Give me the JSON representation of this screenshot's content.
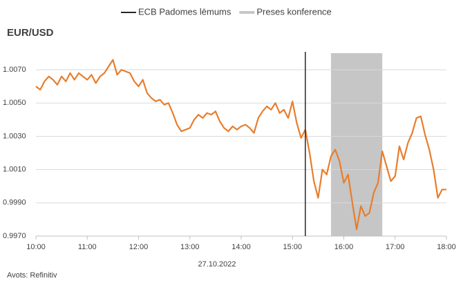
{
  "chart_data": {
    "type": "line",
    "title": "EUR/USD",
    "x_label": "27.10.2022",
    "source": "Avots: Refinitiv",
    "x": [
      "10:00",
      "10:05",
      "10:10",
      "10:15",
      "10:20",
      "10:25",
      "10:30",
      "10:35",
      "10:40",
      "10:45",
      "10:50",
      "10:55",
      "11:00",
      "11:05",
      "11:10",
      "11:15",
      "11:20",
      "11:25",
      "11:30",
      "11:35",
      "11:40",
      "11:45",
      "11:50",
      "11:55",
      "12:00",
      "12:05",
      "12:10",
      "12:15",
      "12:20",
      "12:25",
      "12:30",
      "12:35",
      "12:40",
      "12:45",
      "12:50",
      "12:55",
      "13:00",
      "13:05",
      "13:10",
      "13:15",
      "13:20",
      "13:25",
      "13:30",
      "13:35",
      "13:40",
      "13:45",
      "13:50",
      "13:55",
      "14:00",
      "14:05",
      "14:10",
      "14:15",
      "14:20",
      "14:25",
      "14:30",
      "14:35",
      "14:40",
      "14:45",
      "14:50",
      "14:55",
      "15:00",
      "15:05",
      "15:10",
      "15:15",
      "15:20",
      "15:25",
      "15:30",
      "15:35",
      "15:40",
      "15:45",
      "15:50",
      "15:55",
      "16:00",
      "16:05",
      "16:10",
      "16:15",
      "16:20",
      "16:25",
      "16:30",
      "16:35",
      "16:40",
      "16:45",
      "16:50",
      "16:55",
      "17:00",
      "17:05",
      "17:10",
      "17:15",
      "17:20",
      "17:25",
      "17:30",
      "17:35",
      "17:40",
      "17:45",
      "17:50",
      "17:55",
      "18:00"
    ],
    "series": [
      {
        "name": "EUR/USD",
        "color": "#e87d2b",
        "values": [
          1.006,
          1.0058,
          1.0063,
          1.0066,
          1.0064,
          1.0061,
          1.0066,
          1.0063,
          1.0068,
          1.0064,
          1.0068,
          1.0066,
          1.0064,
          1.0067,
          1.0062,
          1.0066,
          1.0068,
          1.0072,
          1.0076,
          1.0067,
          1.007,
          1.0069,
          1.0068,
          1.0063,
          1.006,
          1.0064,
          1.0056,
          1.0053,
          1.0051,
          1.0052,
          1.0049,
          1.005,
          1.0044,
          1.0037,
          1.0033,
          1.0034,
          1.0035,
          1.004,
          1.0043,
          1.0041,
          1.0044,
          1.0043,
          1.0045,
          1.0039,
          1.0035,
          1.0033,
          1.0036,
          1.0034,
          1.0036,
          1.0037,
          1.0035,
          1.0032,
          1.0041,
          1.0045,
          1.0048,
          1.0046,
          1.005,
          1.0044,
          1.0046,
          1.0041,
          1.0051,
          1.0038,
          1.0029,
          1.0034,
          1.002,
          1.0003,
          0.9993,
          1.001,
          1.0007,
          1.0018,
          1.0022,
          1.0015,
          1.0002,
          1.0007,
          0.999,
          0.9974,
          0.9988,
          0.9982,
          0.9984,
          0.9996,
          1.0002,
          1.0021,
          1.0012,
          1.0003,
          1.0006,
          1.0024,
          1.0016,
          1.0026,
          1.0032,
          1.0041,
          1.0042,
          1.0031,
          1.0022,
          1.001,
          0.9993,
          0.9998,
          0.9998
        ]
      }
    ],
    "events": [
      {
        "name": "ECB Padomes lēmums",
        "color": "#262626",
        "x": "15:15"
      }
    ],
    "bands": [
      {
        "name": "Preses konference",
        "color": "#c6c6c6",
        "x": [
          "15:45",
          "16:45"
        ]
      }
    ],
    "xlim": [
      "10:00",
      "18:00"
    ],
    "xticks": [
      "10:00",
      "11:00",
      "12:00",
      "13:00",
      "14:00",
      "15:00",
      "16:00",
      "17:00",
      "18:00"
    ],
    "ylim": [
      0.997,
      1.008
    ],
    "yticks": [
      {
        "value": 0.997,
        "label": "0.9970"
      },
      {
        "value": 0.999,
        "label": "0.9990"
      },
      {
        "value": 1.001,
        "label": "1.0010"
      },
      {
        "value": 1.003,
        "label": "1.0030"
      },
      {
        "value": 1.005,
        "label": "1.0050"
      },
      {
        "value": 1.007,
        "label": "1.0070"
      }
    ],
    "grid": true
  }
}
